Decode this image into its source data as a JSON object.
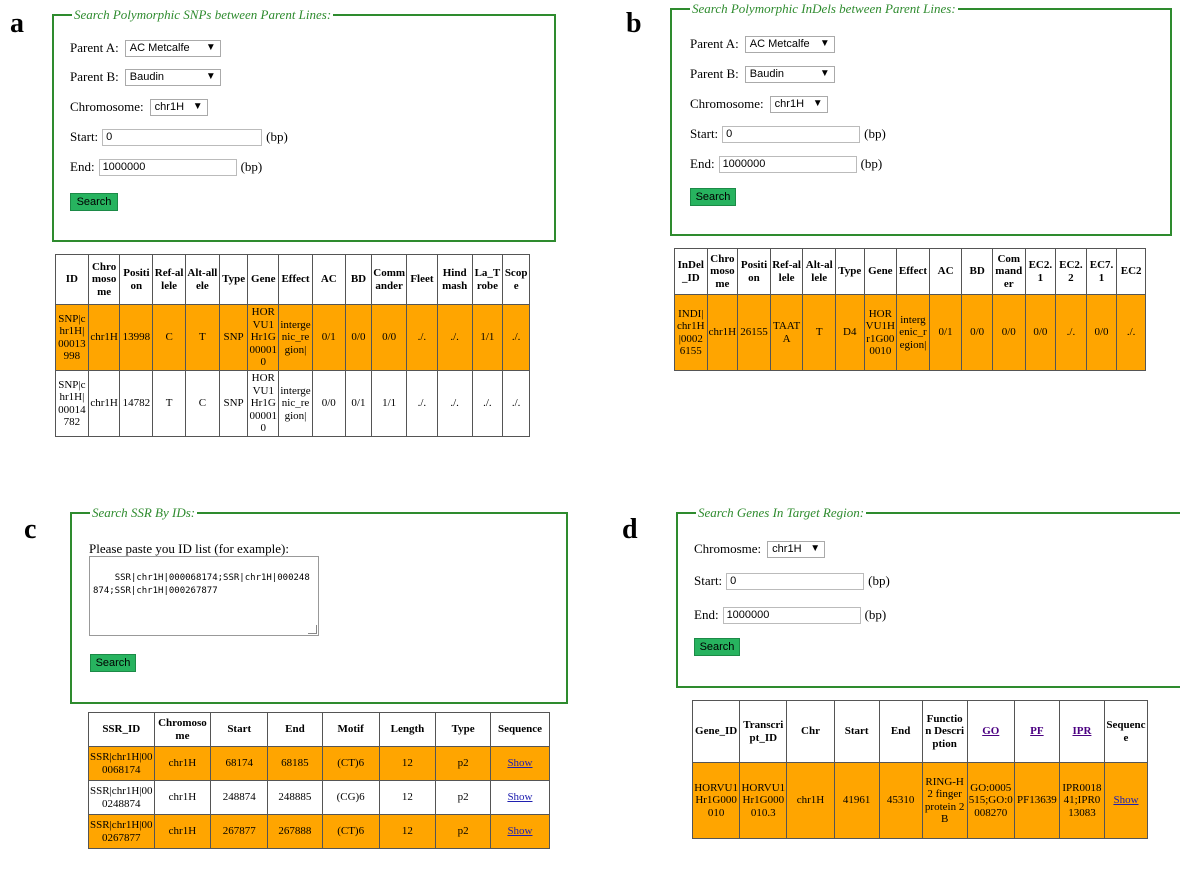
{
  "colors": {
    "accent_green": "#2e8b2e",
    "button_green": "#27b35f",
    "highlight_orange": "#ffa500"
  },
  "panel_a": {
    "letter": "a",
    "legend": "Search Polymorphic SNPs between Parent Lines:",
    "parent_a_label": "Parent A:",
    "parent_a_value": "AC Metcalfe",
    "parent_b_label": "Parent B:",
    "parent_b_value": "Baudin",
    "chrom_label": "Chromosome:",
    "chrom_value": "chr1H",
    "start_label": "Start:",
    "start_value": "0",
    "start_unit": "(bp)",
    "end_label": "End:",
    "end_value": "1000000",
    "end_unit": "(bp)",
    "search_label": "Search",
    "table": {
      "headers": [
        "ID",
        "Chromosome",
        "Position",
        "Ref-allele",
        "Alt-allele",
        "Type",
        "Gene",
        "Effect",
        "AC",
        "BD",
        "Commander",
        "Fleet",
        "Hindmash",
        "La_Trobe",
        "Scope"
      ],
      "rows": [
        {
          "highlight": true,
          "cells": [
            "SNP|chr1H|00013998",
            "chr1H",
            "13998",
            "C",
            "T",
            "SNP",
            "HORVU1Hr1G000010",
            "intergenic_region|",
            "0/1",
            "0/0",
            "0/0",
            "./.",
            "./.",
            "1/1",
            "./."
          ]
        },
        {
          "highlight": false,
          "cells": [
            "SNP|chr1H|00014782",
            "chr1H",
            "14782",
            "T",
            "C",
            "SNP",
            "HORVU1Hr1G000010",
            "intergenic_region|",
            "0/0",
            "0/1",
            "1/1",
            "./.",
            "./.",
            "./.",
            "./."
          ]
        }
      ]
    }
  },
  "panel_b": {
    "letter": "b",
    "legend": "Search Polymorphic InDels between Parent Lines:",
    "parent_a_label": "Parent A:",
    "parent_a_value": "AC Metcalfe",
    "parent_b_label": "Parent B:",
    "parent_b_value": "Baudin",
    "chrom_label": "Chromosome:",
    "chrom_value": "chr1H",
    "start_label": "Start:",
    "start_value": "0",
    "start_unit": "(bp)",
    "end_label": "End:",
    "end_value": "1000000",
    "end_unit": "(bp)",
    "search_label": "Search",
    "table": {
      "headers": [
        "InDel_ID",
        "Chromosome",
        "Position",
        "Ref-allele",
        "Alt-allele",
        "Type",
        "Gene",
        "Effect",
        "AC",
        "BD",
        "Commander",
        "EC2.1",
        "EC2.2",
        "EC7.1",
        "EC2"
      ],
      "rows": [
        {
          "highlight": true,
          "cells": [
            "INDI|chr1H|00026155",
            "chr1H",
            "26155",
            "TAATA",
            "T",
            "D4",
            "HORVU1Hr1G000010",
            "intergenic_region|",
            "0/1",
            "0/0",
            "0/0",
            "0/0",
            "./.",
            "0/0",
            "./."
          ]
        }
      ]
    }
  },
  "panel_c": {
    "letter": "c",
    "legend": "Search SSR By IDs:",
    "prompt": "Please paste you ID list (for example):",
    "textarea": "SSR|chr1H|000068174;SSR|chr1H|000248874;SSR|chr1H|000267877",
    "search_label": "Search",
    "table": {
      "headers": [
        "SSR_ID",
        "Chromosome",
        "Start",
        "End",
        "Motif",
        "Length",
        "Type",
        "Sequence"
      ],
      "rows": [
        {
          "highlight": true,
          "cells": [
            "SSR|chr1H|000068174",
            "chr1H",
            "68174",
            "68185",
            "(CT)6",
            "12",
            "p2",
            "Show"
          ]
        },
        {
          "highlight": false,
          "cells": [
            "SSR|chr1H|000248874",
            "chr1H",
            "248874",
            "248885",
            "(CG)6",
            "12",
            "p2",
            "Show"
          ]
        },
        {
          "highlight": true,
          "cells": [
            "SSR|chr1H|000267877",
            "chr1H",
            "267877",
            "267888",
            "(CT)6",
            "12",
            "p2",
            "Show"
          ]
        }
      ]
    }
  },
  "panel_d": {
    "letter": "d",
    "legend": "Search Genes In Target Region:",
    "chrom_label": "Chromosme:",
    "chrom_value": "chr1H",
    "start_label": "Start:",
    "start_value": "0",
    "start_unit": "(bp)",
    "end_label": "End:",
    "end_value": "1000000",
    "end_unit": "(bp)",
    "search_label": "Search",
    "table": {
      "headers": [
        "Gene_ID",
        "Transcript_ID",
        "Chr",
        "Start",
        "End",
        "Function Description",
        "GO",
        "PF",
        "IPR",
        "Sequence"
      ],
      "rows": [
        {
          "highlight": true,
          "cells": [
            "HORVU1Hr1G000010",
            "HORVU1Hr1G000010.3",
            "chr1H",
            "41961",
            "45310",
            "RING-H2 finger protein 2B",
            "GO:0005515;GO:0008270",
            "PF13639",
            "IPR001841;IPR013083",
            "Show"
          ]
        }
      ]
    }
  }
}
